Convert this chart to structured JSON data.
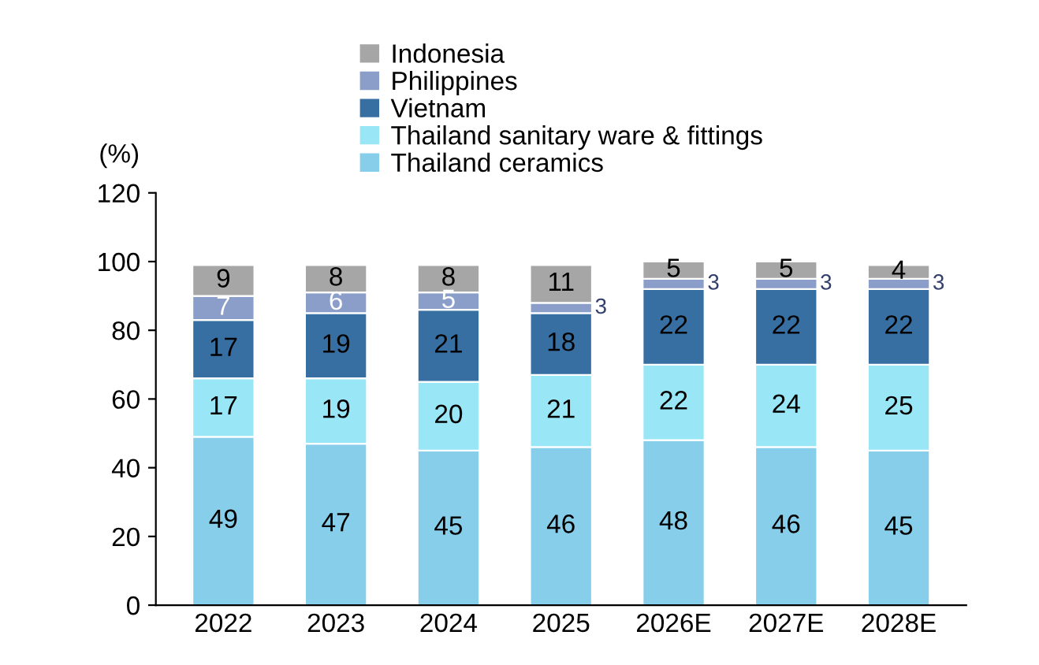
{
  "chart_data": {
    "type": "bar",
    "stacked": true,
    "ylabel": "(%)",
    "categories": [
      "2022",
      "2023",
      "2024",
      "2025",
      "2026E",
      "2027E",
      "2028E"
    ],
    "series": [
      {
        "name": "Thailand ceramics",
        "color": "#87ceeb",
        "values": [
          49,
          47,
          45,
          46,
          48,
          46,
          45
        ]
      },
      {
        "name": "Thailand sanitary ware & fittings",
        "color": "#99e6f7",
        "values": [
          17,
          19,
          20,
          21,
          22,
          24,
          25
        ]
      },
      {
        "name": "Vietnam",
        "color": "#376fa2",
        "values": [
          17,
          19,
          21,
          18,
          22,
          22,
          22
        ]
      },
      {
        "name": "Philippines",
        "color": "#8a9ec9",
        "values": [
          7,
          6,
          5,
          3,
          3,
          3,
          3
        ]
      },
      {
        "name": "Indonesia",
        "color": "#a6a6a6",
        "values": [
          9,
          8,
          8,
          11,
          5,
          5,
          4
        ]
      }
    ],
    "ylim": [
      0,
      120
    ],
    "yticks": [
      0,
      20,
      40,
      60,
      80,
      100,
      120
    ],
    "data_labels": true,
    "legend": "top",
    "grid": false
  }
}
